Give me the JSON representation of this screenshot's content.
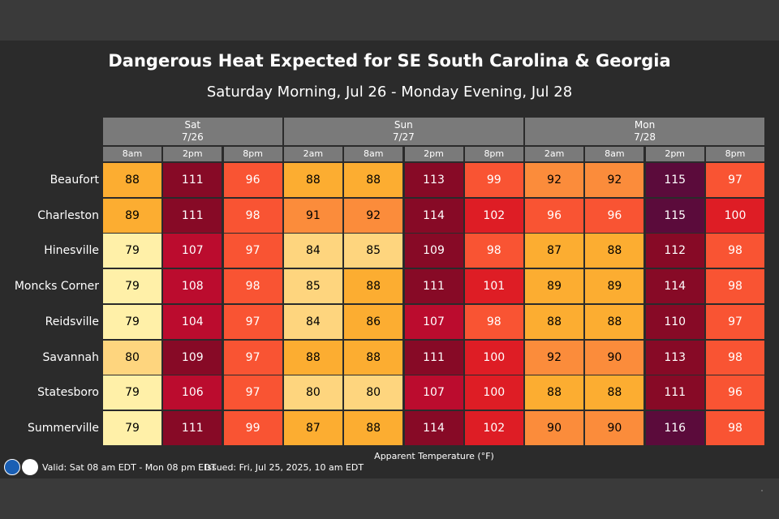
{
  "title": "Dangerous Heat Expected for SE South Carolina & Georgia",
  "subtitle": "Saturday Morning, Jul 26 - Monday Evening, Jul 28",
  "chart_data": {
    "type": "heatmap",
    "title": "Dangerous Heat Expected for SE South Carolina & Georgia",
    "subtitle": "Saturday Morning, Jul 26 - Monday Evening, Jul 28",
    "days": [
      {
        "name": "Sat",
        "date": "7/26",
        "span": 3
      },
      {
        "name": "Sun",
        "date": "7/27",
        "span": 4
      },
      {
        "name": "Mon",
        "date": "7/28",
        "span": 4
      }
    ],
    "columns": [
      "8am",
      "2pm",
      "8pm",
      "2am",
      "8am",
      "2pm",
      "8pm",
      "2am",
      "8am",
      "2pm",
      "8pm"
    ],
    "rows": [
      {
        "name": "Beaufort",
        "values": [
          88,
          111,
          96,
          88,
          88,
          113,
          99,
          92,
          92,
          115,
          97
        ]
      },
      {
        "name": "Charleston",
        "values": [
          89,
          111,
          98,
          91,
          92,
          114,
          102,
          96,
          96,
          115,
          100
        ]
      },
      {
        "name": "Hinesville",
        "values": [
          79,
          107,
          97,
          84,
          85,
          109,
          98,
          87,
          88,
          112,
          98
        ]
      },
      {
        "name": "Moncks Corner",
        "values": [
          79,
          108,
          98,
          85,
          88,
          111,
          101,
          89,
          89,
          114,
          98
        ]
      },
      {
        "name": "Reidsville",
        "values": [
          79,
          104,
          97,
          84,
          86,
          107,
          98,
          88,
          88,
          110,
          97
        ]
      },
      {
        "name": "Savannah",
        "values": [
          80,
          109,
          97,
          88,
          88,
          111,
          100,
          92,
          90,
          113,
          98
        ]
      },
      {
        "name": "Statesboro",
        "values": [
          79,
          106,
          97,
          80,
          80,
          107,
          100,
          88,
          88,
          111,
          96
        ]
      },
      {
        "name": "Summerville",
        "values": [
          79,
          111,
          99,
          87,
          88,
          114,
          102,
          90,
          90,
          116,
          98
        ]
      }
    ],
    "legend_label": "Apparent Temperature (°F)",
    "color_scale": [
      {
        "min": 0,
        "color": "#fff0a8",
        "text": "#000000"
      },
      {
        "min": 80,
        "color": "#fed57e",
        "text": "#000000"
      },
      {
        "min": 86,
        "color": "#fcad31",
        "text": "#000000"
      },
      {
        "min": 90,
        "color": "#fb8c3b",
        "text": "#000000"
      },
      {
        "min": 96,
        "color": "#f95433",
        "text": "#ffffff"
      },
      {
        "min": 100,
        "color": "#de1d25",
        "text": "#ffffff"
      },
      {
        "min": 104,
        "color": "#bb0c2e",
        "text": "#ffffff"
      },
      {
        "min": 109,
        "color": "#870a26",
        "text": "#ffffff"
      },
      {
        "min": 115,
        "color": "#5b0b3b",
        "text": "#ffffff"
      }
    ]
  },
  "footer": {
    "valid": "Valid: Sat 08 am EDT - Mon 08 pm EDT",
    "issued": "Issued: Fri, Jul 25, 2025, 10 am EDT"
  },
  "logos": {
    "noaa": "noaa-logo",
    "nws": "nws-logo"
  }
}
